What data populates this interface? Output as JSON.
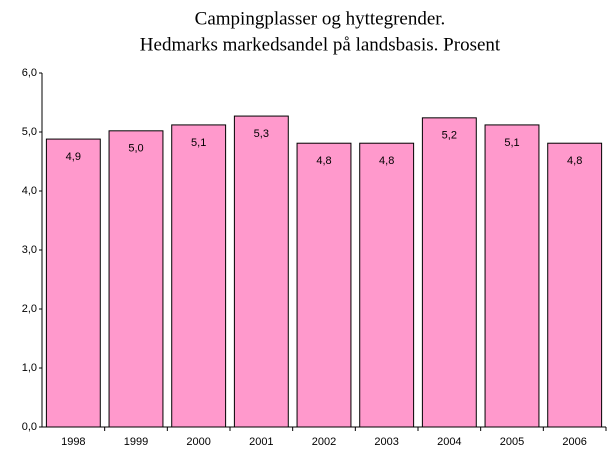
{
  "chart_data": {
    "type": "bar",
    "title": "Campingplasser og hyttegrender.",
    "subtitle": "Hedmarks markedsandel på landsbasis. Prosent",
    "categories": [
      "1998",
      "1999",
      "2000",
      "2001",
      "2002",
      "2003",
      "2004",
      "2005",
      "2006"
    ],
    "values": [
      4.88,
      5.02,
      5.12,
      5.27,
      4.81,
      4.81,
      5.24,
      5.12,
      4.81
    ],
    "value_labels": [
      "4,9",
      "5,0",
      "5,1",
      "5,3",
      "4,8",
      "4,8",
      "5,2",
      "5,1",
      "4,8"
    ],
    "color": "#ff99cc",
    "ylim": [
      0,
      6
    ],
    "yticks": [
      {
        "value": 0,
        "label": "0,0"
      },
      {
        "value": 1,
        "label": "1,0"
      },
      {
        "value": 2,
        "label": "2,0"
      },
      {
        "value": 3,
        "label": "3,0"
      },
      {
        "value": 4,
        "label": "4,0"
      },
      {
        "value": 5,
        "label": "5,0"
      },
      {
        "value": 6,
        "label": "6,0"
      }
    ],
    "grid": false
  }
}
